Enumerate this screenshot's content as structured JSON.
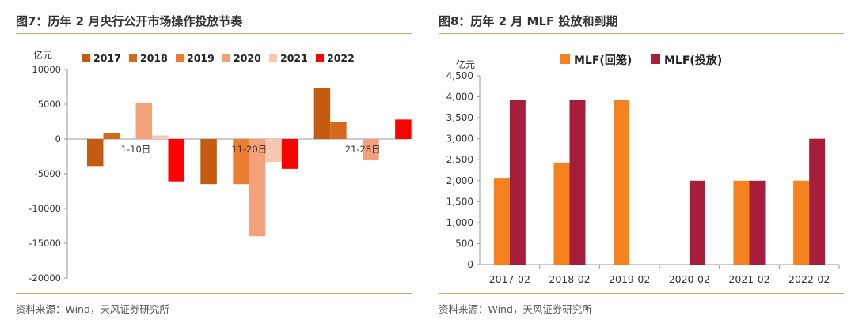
{
  "figures": [
    {
      "title": "图7：历年 2 月央行公开市场操作投放节奏",
      "source": "资料来源：Wind，天风证券研究所"
    },
    {
      "title": "图8：历年 2 月 MLF 投放和到期",
      "source": "资料来源：Wind，天风证券研究所"
    }
  ],
  "chart_data": [
    {
      "type": "bar",
      "title": "图7：历年 2 月央行公开市场操作投放节奏",
      "unit_label": "亿元",
      "categories": [
        "1-10日",
        "11-20日",
        "21-28日"
      ],
      "ylim": [
        -20000,
        10000
      ],
      "yticks": [
        "10000",
        "5000",
        "0",
        "-5000",
        "-10000",
        "-15000",
        "-20000"
      ],
      "legend_position": "top",
      "series": [
        {
          "name": "2017",
          "color": "#c55a11",
          "values": [
            -3900,
            -6500,
            7300
          ]
        },
        {
          "name": "2018",
          "color": "#d2691e",
          "values": [
            800,
            0,
            2400
          ]
        },
        {
          "name": "2019",
          "color": "#ed7d31",
          "values": [
            0,
            -6500,
            0
          ]
        },
        {
          "name": "2020",
          "color": "#f4a07a",
          "values": [
            5200,
            -14000,
            -3000
          ]
        },
        {
          "name": "2021",
          "color": "#f7c7b0",
          "values": [
            500,
            -3300,
            0
          ]
        },
        {
          "name": "2022",
          "color": "#ff0000",
          "values": [
            -6100,
            -4300,
            2800
          ]
        }
      ]
    },
    {
      "type": "bar",
      "title": "图8：历年 2 月 MLF 投放和到期",
      "unit_label": "亿元",
      "categories": [
        "2017-02",
        "2018-02",
        "2019-02",
        "2020-02",
        "2021-02",
        "2022-02"
      ],
      "ylim": [
        0,
        4500
      ],
      "yticks": [
        "4,500",
        "4,000",
        "3,500",
        "3,000",
        "2,500",
        "2,000",
        "1,500",
        "1,000",
        "500",
        "0"
      ],
      "legend_position": "top",
      "series": [
        {
          "name": "MLF(回笼)",
          "color": "#f5821f",
          "values": [
            2050,
            2430,
            3930,
            0,
            2000,
            2000
          ]
        },
        {
          "name": "MLF(投放)",
          "color": "#a61e3c",
          "values": [
            3930,
            3930,
            0,
            2000,
            2000,
            3000
          ]
        }
      ]
    }
  ]
}
